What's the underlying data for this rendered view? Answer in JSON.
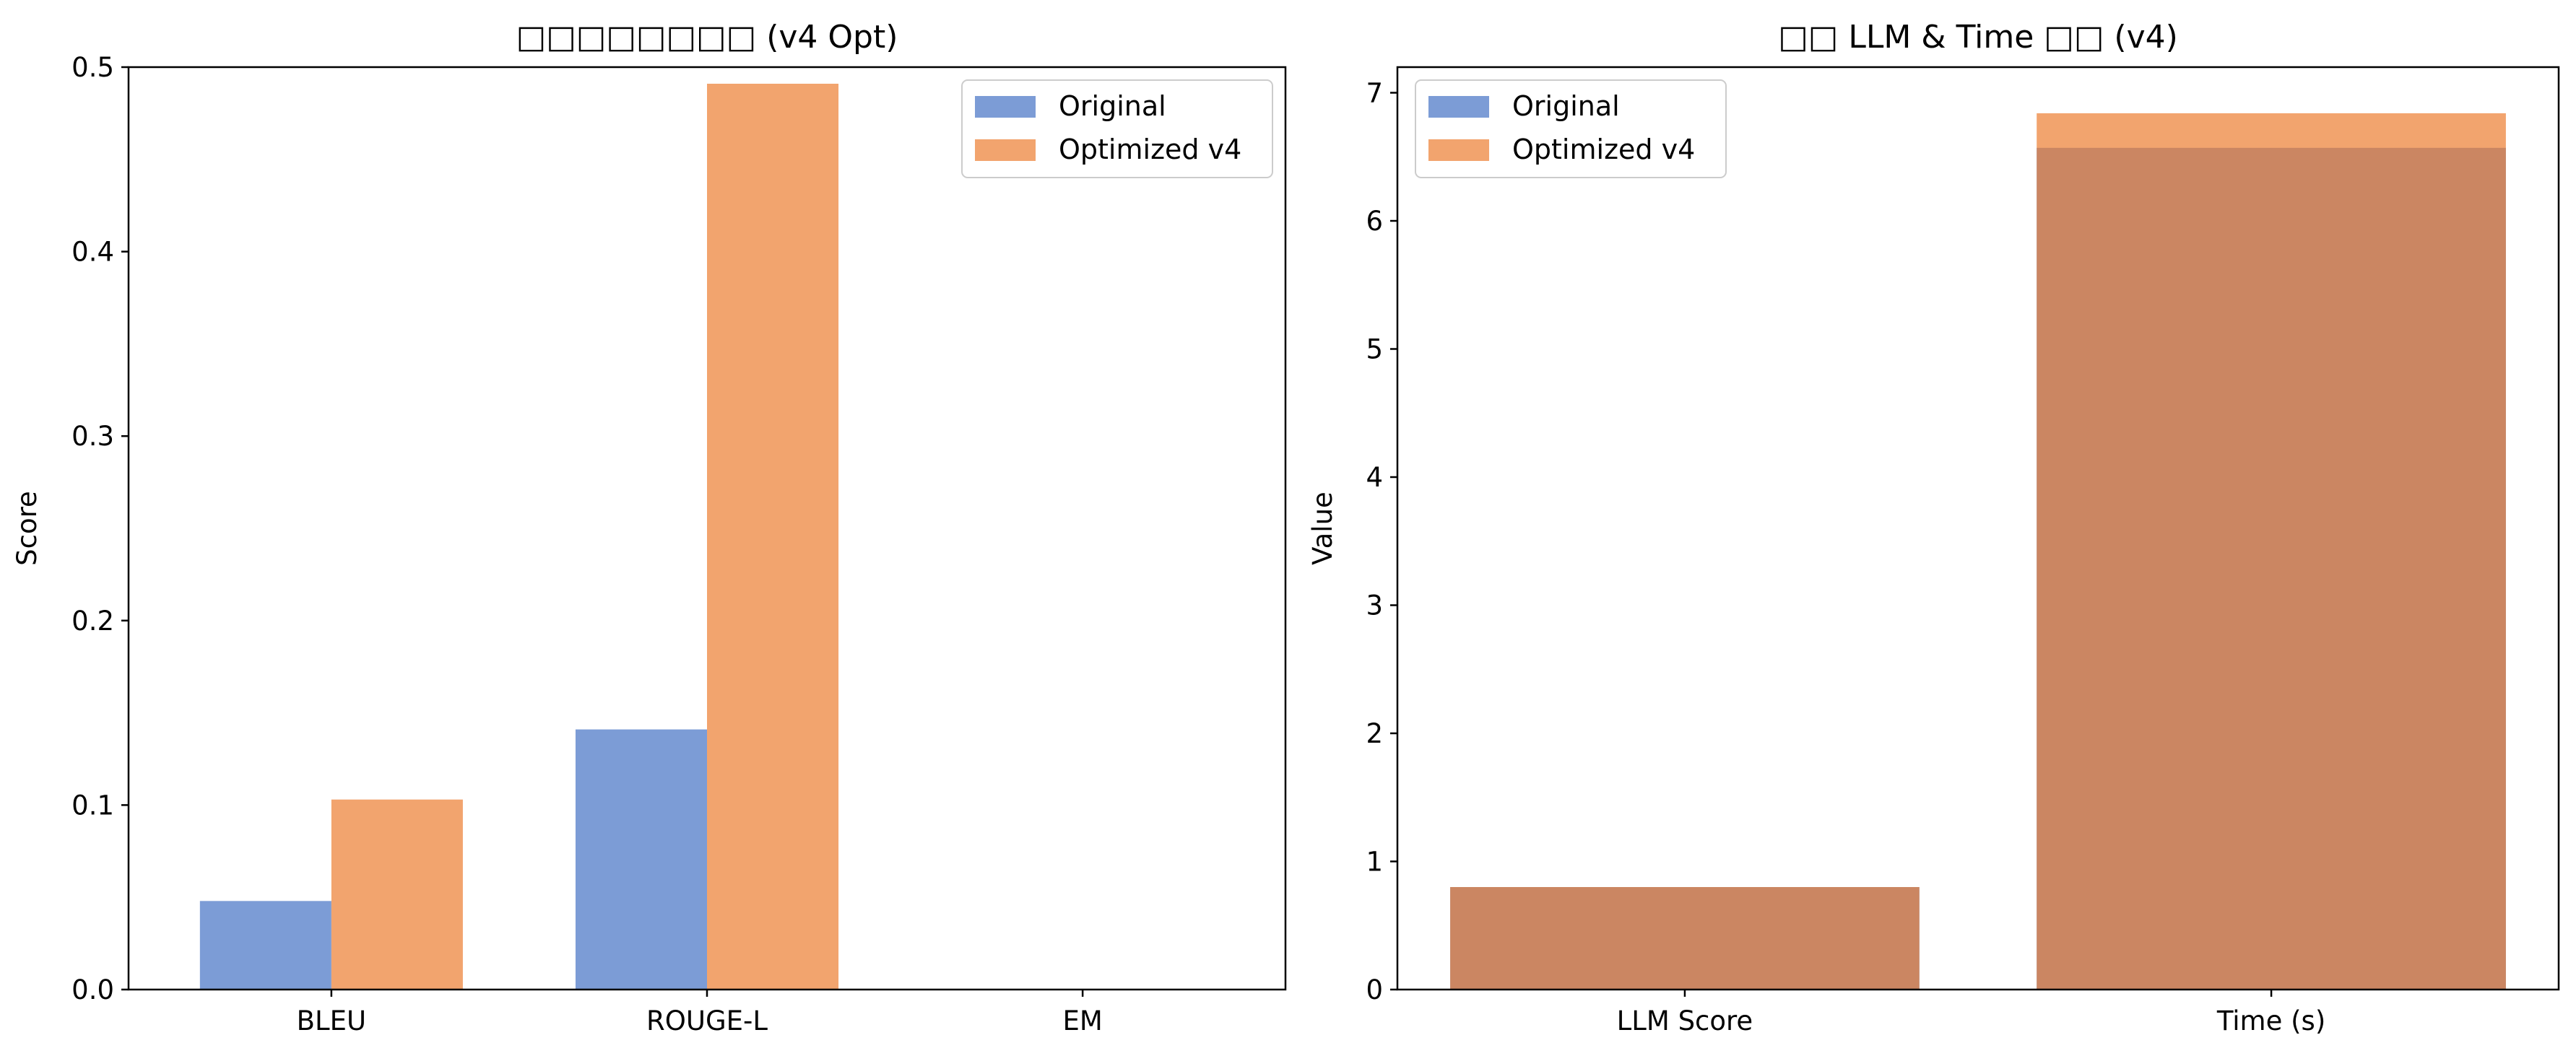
{
  "colors": {
    "original": "#4472C4",
    "optimized": "#ED7D31"
  },
  "chart_data": [
    {
      "type": "bar",
      "title": "□□□□□□□□ (v4 Opt)",
      "xlabel": "",
      "ylabel": "Score",
      "categories": [
        "BLEU",
        "ROUGE-L",
        "EM"
      ],
      "ylim": [
        0,
        0.5
      ],
      "yticks": [
        0.0,
        0.1,
        0.2,
        0.3,
        0.4,
        0.5
      ],
      "ytick_labels": [
        "0.0",
        "0.1",
        "0.2",
        "0.3",
        "0.4",
        "0.5"
      ],
      "bar_mode": "grouped",
      "legend": "top-right",
      "grid": false,
      "series": [
        {
          "name": "Original",
          "values": [
            0.048,
            0.141,
            0.0
          ]
        },
        {
          "name": "Optimized v4",
          "values": [
            0.103,
            0.491,
            0.0
          ]
        }
      ]
    },
    {
      "type": "bar",
      "title": "□□ LLM & Time □□ (v4)",
      "xlabel": "",
      "ylabel": "Value",
      "categories": [
        "LLM Score",
        "Time (s)"
      ],
      "ylim": [
        0,
        7.2
      ],
      "yticks": [
        0,
        1,
        2,
        3,
        4,
        5,
        6,
        7
      ],
      "ytick_labels": [
        "0",
        "1",
        "2",
        "3",
        "4",
        "5",
        "6",
        "7"
      ],
      "bar_mode": "overlaid",
      "legend": "top-left",
      "grid": false,
      "series": [
        {
          "name": "Original",
          "values": [
            0.8,
            6.57
          ]
        },
        {
          "name": "Optimized v4",
          "values": [
            0.8,
            6.84
          ]
        }
      ]
    }
  ]
}
